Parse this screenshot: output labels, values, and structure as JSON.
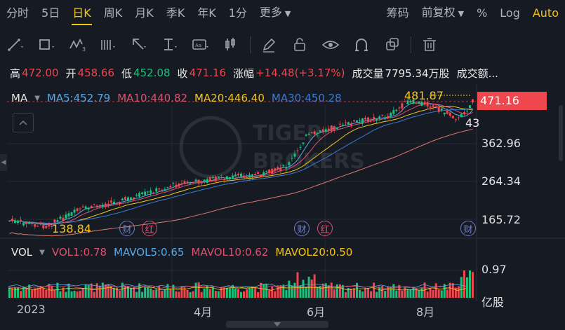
{
  "tabs": {
    "items": [
      "分时",
      "5日",
      "日K",
      "周K",
      "月K",
      "季K",
      "年K",
      "1分",
      "更多"
    ],
    "active": "日K",
    "right": [
      "筹码",
      "前复权",
      "%",
      "Log",
      "Auto"
    ]
  },
  "toolbar": {
    "icons": [
      "line-tool-icon",
      "rect-tool-icon",
      "wave-tool-icon",
      "fib-tool-icon",
      "arrow-tool-icon",
      "text-level-tool-icon",
      "text-tool-icon",
      "candle-tool-icon",
      "pen-icon",
      "lock-icon",
      "eye-icon",
      "magnet-icon",
      "copy-icon",
      "trash-icon"
    ]
  },
  "quote": {
    "high_label": "高",
    "high": "472.00",
    "open_label": "开",
    "open": "458.66",
    "low_label": "低",
    "low": "452.08",
    "close_label": "收",
    "close": "471.16",
    "change_label": "涨幅",
    "change": "+14.48(+3.17%)",
    "volume_label": "成交量",
    "volume": "7795.34万股",
    "turnover_label": "成交额..."
  },
  "ma": {
    "label": "MA",
    "ma5": "MA5:452.79",
    "ma10": "MA10:440.82",
    "ma20": "MA20:446.40",
    "ma30": "MA30:450.28"
  },
  "vol": {
    "label": "VOL",
    "vol1": "VOL1:0.78",
    "mavol5": "MAVOL5:0.65",
    "mavol10": "MAVOL10:0.62",
    "mavol20": "MAVOL20:0.50"
  },
  "price_axis": [
    "362.96",
    "264.34",
    "165.72"
  ],
  "vol_axis": [
    "0.97",
    "亿股"
  ],
  "current_price": "471.16",
  "high_marker": "481.87",
  "low_marker": "138.84",
  "partial_marker": "43",
  "x_axis": [
    "2023",
    "4月",
    "6月",
    "8月"
  ],
  "badges": [
    "财",
    "红",
    "财",
    "红",
    "财"
  ],
  "watermark": "TIGER BROKERS",
  "colors": {
    "up": "#f0464e",
    "down": "#19c37d",
    "accent": "#f5c518",
    "ma5": "#5aa9e6",
    "ma10": "#e0506e",
    "ma20": "#f5c518",
    "ma30": "#3a7bd5"
  }
}
